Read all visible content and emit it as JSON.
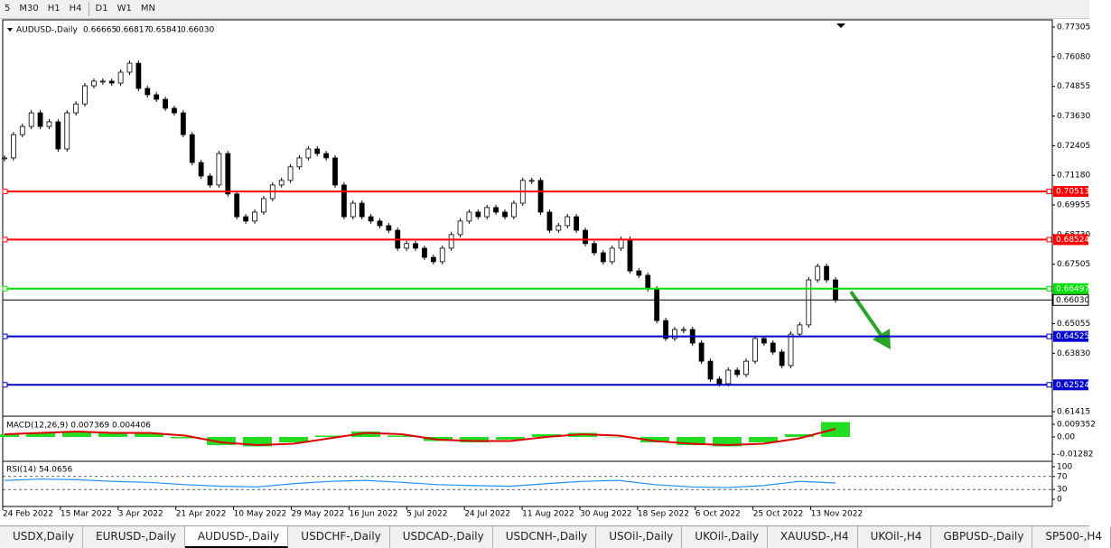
{
  "toolbar": [
    "5",
    "M30",
    "H1",
    "H4",
    "D1",
    "W1",
    "MN"
  ],
  "chart_data": {
    "type": "candlestick",
    "title": "AUDUSD-,Daily",
    "quote": [
      {
        "value": 0.66665,
        "label": "0.66665"
      },
      {
        "value": 0.66817,
        "label": "0.66817"
      },
      {
        "value": 0.65841,
        "label": "0.65841"
      },
      {
        "value": 0.6603,
        "label": "0.66030"
      }
    ],
    "categories": [
      "24 Feb 2022",
      "15 Mar 2022",
      "3 Apr 2022",
      "21 Apr 2022",
      "10 May 2022",
      "29 May 2022",
      "16 Jun 2022",
      "5 Jul 2022",
      "24 Jul 2022",
      "11 Aug 2022",
      "30 Aug 2022",
      "18 Sep 2022",
      "6 Oct 2022",
      "25 Oct 2022",
      "13 Nov 2022"
    ],
    "closes": [
      0.719,
      0.7286,
      0.732,
      0.7376,
      0.732,
      0.7339,
      0.7227,
      0.7376,
      0.7413,
      0.7488,
      0.7507,
      0.7507,
      0.7499,
      0.7544,
      0.7581,
      0.7477,
      0.7451,
      0.7432,
      0.7395,
      0.7376,
      0.7286,
      0.7171,
      0.7115,
      0.7078,
      0.7208,
      0.7041,
      0.6947,
      0.6929,
      0.6966,
      0.7022,
      0.7078,
      0.7097,
      0.7153,
      0.719,
      0.7227,
      0.7208,
      0.719,
      0.7078,
      0.6947,
      0.7003,
      0.6947,
      0.6929,
      0.691,
      0.6891,
      0.6817,
      0.6836,
      0.6817,
      0.6779,
      0.6761,
      0.6817,
      0.6873,
      0.6929,
      0.6966,
      0.6947,
      0.6985,
      0.6966,
      0.6947,
      0.7003,
      0.7097,
      0.7097,
      0.6966,
      0.6891,
      0.691,
      0.6947,
      0.6891,
      0.6836,
      0.6798,
      0.6761,
      0.6817,
      0.6854,
      0.6723,
      0.6705,
      0.6649,
      0.6518,
      0.6444,
      0.6481,
      0.6481,
      0.6425,
      0.635,
      0.6276,
      0.6257,
      0.6313,
      0.6295,
      0.635,
      0.6444,
      0.6425,
      0.6388,
      0.6332,
      0.6462,
      0.65,
      0.6686,
      0.6742,
      0.6686,
      0.6603
    ],
    "ylim": [
      0.61266,
      0.77603
    ],
    "yticks": [
      {
        "value": 0.77305,
        "label": "0.77305"
      },
      {
        "value": 0.7608,
        "label": "0.76080"
      },
      {
        "value": 0.74855,
        "label": "0.74855"
      },
      {
        "value": 0.7363,
        "label": "0.73630"
      },
      {
        "value": 0.72405,
        "label": "0.72405"
      },
      {
        "value": 0.7118,
        "label": "0.71180"
      },
      {
        "value": 0.69955,
        "label": "0.69955"
      },
      {
        "value": 0.6873,
        "label": "0.68730"
      },
      {
        "value": 0.67505,
        "label": "0.67505"
      },
      {
        "value": 0.65055,
        "label": "0.65055"
      },
      {
        "value": 0.6383,
        "label": "0.63830"
      },
      {
        "value": 0.61415,
        "label": "0.61415"
      }
    ],
    "levels": [
      {
        "value": 0.70513,
        "label": "0.70513",
        "color": "#ff0000"
      },
      {
        "value": 0.68524,
        "label": "0.68524",
        "color": "#ff0000"
      },
      {
        "value": 0.66497,
        "label": "0.66497",
        "color": "#00e000"
      },
      {
        "value": 0.6603,
        "label": "0.66030",
        "color": "#000000"
      },
      {
        "value": 0.64525,
        "label": "0.64525",
        "color": "#0000cc"
      },
      {
        "value": 0.62524,
        "label": "0.62524",
        "color": "#0000cc"
      }
    ]
  },
  "macd": {
    "label": "MACD(12,26,9) 0.007369 0.004406",
    "histogram": [
      0.002,
      0.003,
      0.004,
      0.003,
      0.003,
      -0.001,
      -0.006,
      -0.007,
      -0.004,
      0.001,
      0.004,
      0.001,
      -0.003,
      -0.004,
      -0.002,
      0.002,
      0.003,
      0.0,
      -0.004,
      -0.006,
      -0.007,
      -0.004,
      0.002,
      0.011
    ],
    "signal": [
      0.002,
      0.003,
      0.004,
      0.003,
      0.003,
      0.001,
      -0.004,
      -0.006,
      -0.005,
      -0.001,
      0.003,
      0.002,
      -0.002,
      -0.003,
      -0.003,
      0.0,
      0.002,
      0.001,
      -0.003,
      -0.005,
      -0.006,
      -0.005,
      -0.001,
      0.006
    ],
    "ylim": [
      -0.0174,
      0.0147
    ],
    "yticks": [
      {
        "value": 0.009352,
        "label": "0.009352"
      },
      {
        "value": 0,
        "label": "0.00"
      },
      {
        "value": -0.01282,
        "label": "-0.01282"
      }
    ]
  },
  "rsi": {
    "label": "RSI(14) 54.0656",
    "values": [
      58,
      62,
      60,
      55,
      52,
      45,
      40,
      38,
      48,
      55,
      58,
      52,
      45,
      42,
      40,
      48,
      55,
      58,
      45,
      38,
      36,
      42,
      55,
      50
    ],
    "ylim": [
      -19.4,
      113.9
    ],
    "yticks": [
      100,
      70,
      30,
      0
    ]
  },
  "tabs": [
    "USDX,Daily",
    "EURUSD-,Daily",
    "AUDUSD-,Daily",
    "USDCHF-,Daily",
    "USDCAD-,Daily",
    "USDCNH-,Daily",
    "USOil-,Daily",
    "UKOil-,Daily",
    "XAUUSD-,H4",
    "UKOil-,H4",
    "GBPUSD-,Daily",
    "SP500-,H4"
  ]
}
